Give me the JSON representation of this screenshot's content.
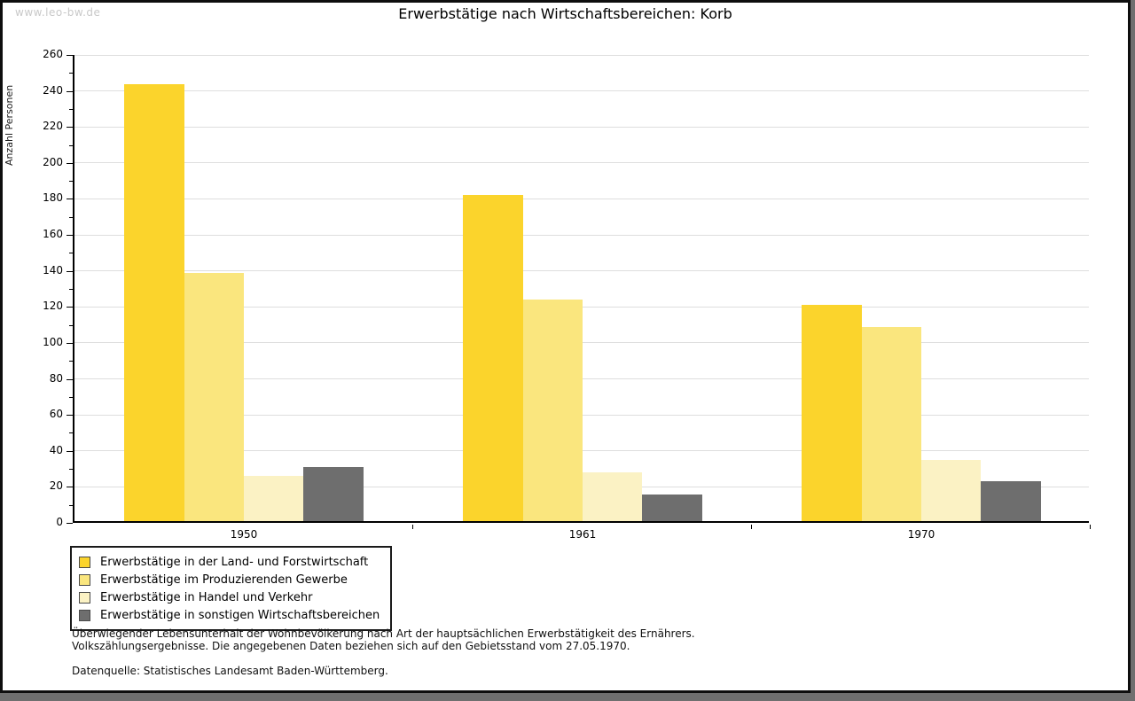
{
  "watermark": "www.leo-bw.de",
  "title": "Erwerbstätige nach Wirtschaftsbereichen: Korb",
  "chart_data": {
    "type": "bar",
    "title": "Erwerbstätige nach Wirtschaftsbereichen: Korb",
    "xlabel": "",
    "ylabel": "Anzahl Personen",
    "ylim": [
      0,
      260
    ],
    "ytick_step": 20,
    "minor_tick_step": 10,
    "grid": true,
    "legend_position": "bottom-left",
    "categories": [
      "1950",
      "1961",
      "1970"
    ],
    "series": [
      {
        "name": "Erwerbstätige in der Land- und Forstwirtschaft",
        "color": "#fbd42c",
        "values": [
          243,
          181,
          120
        ]
      },
      {
        "name": "Erwerbstätige im Produzierenden Gewerbe",
        "color": "#fae67e",
        "values": [
          138,
          123,
          108
        ]
      },
      {
        "name": "Erwerbstätige in Handel und Verkehr",
        "color": "#fbf2c4",
        "values": [
          25,
          27,
          34
        ]
      },
      {
        "name": "Erwerbstätige in sonstigen Wirtschaftsbereichen",
        "color": "#6e6e6e",
        "values": [
          30,
          15,
          22
        ]
      }
    ]
  },
  "footnote": {
    "line1": "Überwiegender Lebensunterhalt der Wohnbevölkerung nach Art der hauptsächlichen Erwerbstätigkeit des Ernährers.",
    "line2": "Volkszählungsergebnisse. Die angegebenen Daten beziehen sich auf den Gebietsstand vom 27.05.1970.",
    "source": "Datenquelle: Statistisches Landesamt Baden-Württemberg."
  }
}
